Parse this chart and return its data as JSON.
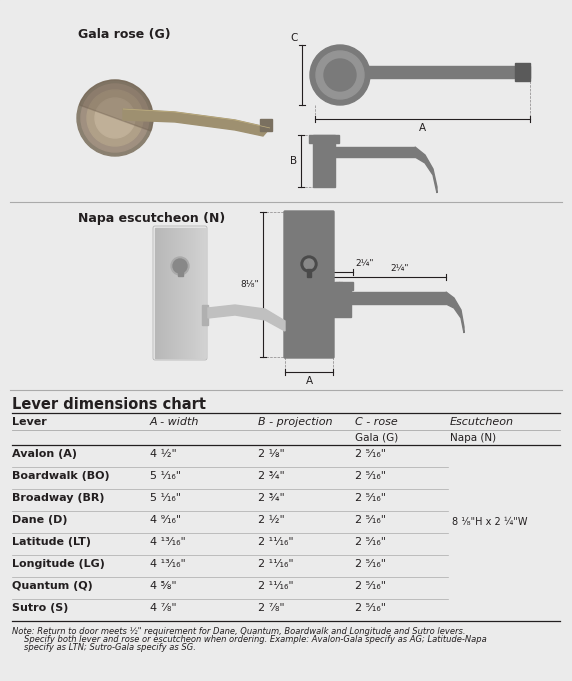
{
  "bg_color": "#e5e5e5",
  "white_panel_color": "#f0f0f0",
  "title_section1": "Gala rose (G)",
  "title_section2": "Napa escutcheon (N)",
  "table_title": "Lever dimensions chart",
  "col_headers": [
    "Lever",
    "A - width",
    "B - projection",
    "C - rose",
    "Escutcheon"
  ],
  "sub_headers": [
    "",
    "",
    "",
    "Gala (G)",
    "Napa (N)"
  ],
  "rows": [
    [
      "Avalon (A)",
      "4 ½\"",
      "2 ⅛\"",
      "2 ⁵⁄₁₆\""
    ],
    [
      "Boardwalk (BO)",
      "5 ¹⁄₁₆\"",
      "2 ¾\"",
      "2 ⁵⁄₁₆\""
    ],
    [
      "Broadway (BR)",
      "5 ¹⁄₁₆\"",
      "2 ¾\"",
      "2 ⁵⁄₁₆\""
    ],
    [
      "Dane (D)",
      "4 ⁹⁄₁₆\"",
      "2 ½\"",
      "2 ⁵⁄₁₆\""
    ],
    [
      "Latitude (LT)",
      "4 ¹³⁄₁₆\"",
      "2 ¹¹⁄₁₆\"",
      "2 ⁵⁄₁₆\""
    ],
    [
      "Longitude (LG)",
      "4 ¹³⁄₁₆\"",
      "2 ¹¹⁄₁₆\"",
      "2 ⁵⁄₁₆\""
    ],
    [
      "Quantum (Q)",
      "4 ⅝\"",
      "2 ¹¹⁄₁₆\"",
      "2 ⁵⁄₁₆\""
    ],
    [
      "Sutro (S)",
      "4 ⁷⁄₈\"",
      "2 ⁷⁄₈\"",
      "2 ⁵⁄₁₆\""
    ]
  ],
  "escutcheon_dim": "8 ¹⁄₈\"H x 2 ¼\"W",
  "escutcheon_row": 3,
  "note_line1": "Note: Return to door meets ½\" requirement for Dane, Quantum, Boardwalk and Longitude and Sutro levers.",
  "note_line2": "Specify both lever and rose or escutcheon when ordering. Example: Avalon-Gala specify as AG; Latitude-Napa",
  "note_line3": "specify as LTN; Sutro-Gala specify as SG.",
  "text_color": "#231f20",
  "line_color": "#aaaaaa",
  "diagram_color": "#7a7a7a",
  "photo_rose_color": "#9e9070",
  "photo_esc_color": "#c8c8c8"
}
